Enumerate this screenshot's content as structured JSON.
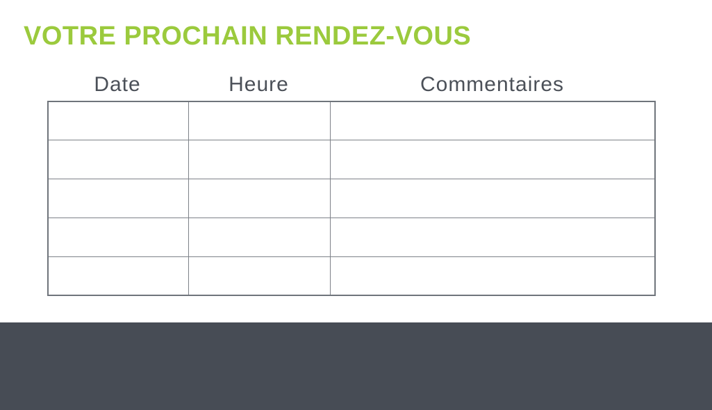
{
  "page": {
    "title": "VOTRE PROCHAIN RENDEZ-VOUS"
  },
  "table": {
    "columns": [
      "Date",
      "Heure",
      "Commentaires"
    ],
    "rows": [
      [
        "",
        "",
        ""
      ],
      [
        "",
        "",
        ""
      ],
      [
        "",
        "",
        ""
      ],
      [
        "",
        "",
        ""
      ],
      [
        "",
        "",
        ""
      ]
    ]
  },
  "colors": {
    "title_green": "#9bca3d",
    "header_text": "#4b5058",
    "table_border": "#7d8188",
    "footer_band": "#474c55",
    "background": "#ffffff"
  }
}
